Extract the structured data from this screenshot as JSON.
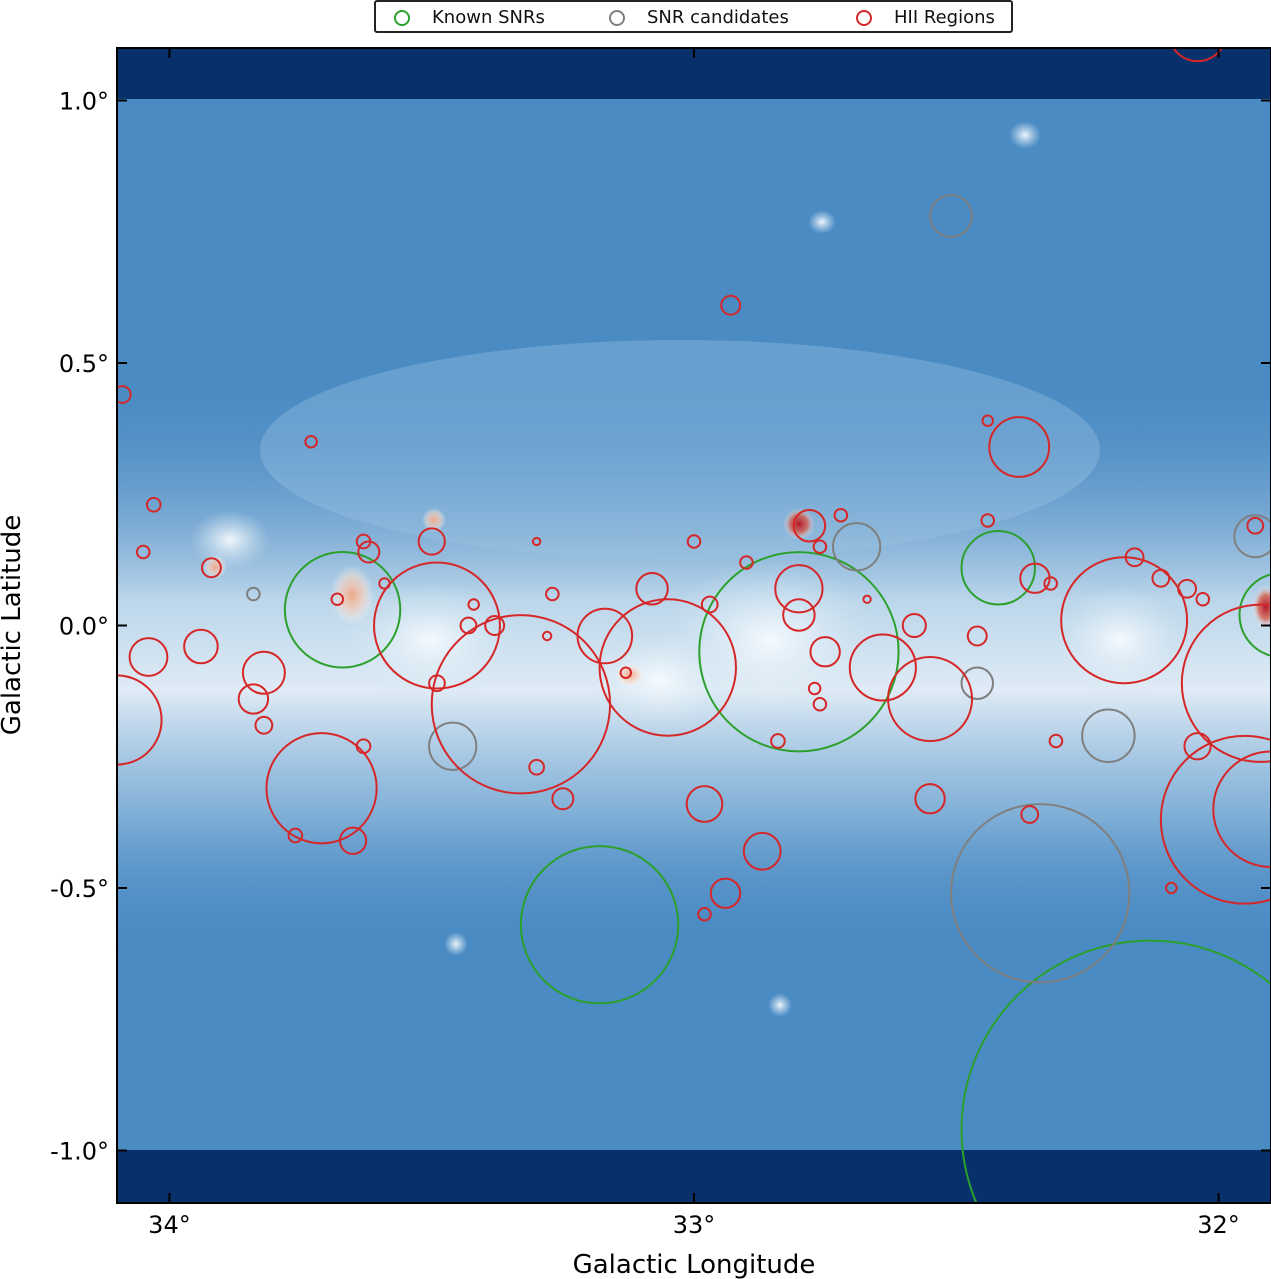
{
  "chart_data": {
    "type": "scatter",
    "xlabel": "Galactic Longitude",
    "ylabel": "Galactic Latitude",
    "xlim": [
      34.1,
      31.9
    ],
    "ylim": [
      -1.1,
      1.1
    ],
    "x_ticks": [
      {
        "value": 34,
        "label": "34°"
      },
      {
        "value": 33,
        "label": "33°"
      },
      {
        "value": 32,
        "label": "32°"
      }
    ],
    "y_ticks": [
      {
        "value": 1.0,
        "label": "1.0°"
      },
      {
        "value": 0.5,
        "label": "0.5°"
      },
      {
        "value": 0.0,
        "label": "0.0°"
      },
      {
        "value": -0.5,
        "label": "-0.5°"
      },
      {
        "value": -1.0,
        "label": "-1.0°"
      }
    ],
    "legend_position": "top-center",
    "legend": [
      {
        "name": "Known SNRs",
        "color": "#2ca02c"
      },
      {
        "name": "SNR candidates",
        "color": "#7f7f7f"
      },
      {
        "name": "HII Regions",
        "color": "#d62728"
      }
    ],
    "series": [
      {
        "name": "Known SNRs",
        "color": "#2ca02c",
        "circles": [
          {
            "l": 33.67,
            "b": 0.03,
            "r": 0.11
          },
          {
            "l": 32.8,
            "b": -0.05,
            "r": 0.19
          },
          {
            "l": 33.18,
            "b": -0.57,
            "r": 0.15
          },
          {
            "l": 32.42,
            "b": 0.11,
            "r": 0.07
          },
          {
            "l": 31.88,
            "b": 0.02,
            "r": 0.08
          },
          {
            "l": 32.13,
            "b": -0.96,
            "r": 0.36
          }
        ]
      },
      {
        "name": "SNR candidates",
        "color": "#7f7f7f",
        "circles": [
          {
            "l": 32.51,
            "b": 0.78,
            "r": 0.04
          },
          {
            "l": 33.46,
            "b": -0.23,
            "r": 0.045
          },
          {
            "l": 33.84,
            "b": 0.06,
            "r": 0.012
          },
          {
            "l": 32.69,
            "b": 0.15,
            "r": 0.045
          },
          {
            "l": 32.34,
            "b": -0.51,
            "r": 0.17
          },
          {
            "l": 32.21,
            "b": -0.21,
            "r": 0.05
          },
          {
            "l": 32.46,
            "b": -0.11,
            "r": 0.03
          },
          {
            "l": 31.93,
            "b": 0.17,
            "r": 0.04
          }
        ]
      },
      {
        "name": "HII Regions",
        "color": "#d62728",
        "circles": [
          {
            "l": 32.04,
            "b": 1.13,
            "r": 0.055
          },
          {
            "l": 32.93,
            "b": 0.61,
            "r": 0.018
          },
          {
            "l": 34.09,
            "b": 0.44,
            "r": 0.016
          },
          {
            "l": 33.73,
            "b": 0.35,
            "r": 0.011
          },
          {
            "l": 34.03,
            "b": 0.23,
            "r": 0.013
          },
          {
            "l": 33.92,
            "b": 0.11,
            "r": 0.018
          },
          {
            "l": 34.05,
            "b": 0.14,
            "r": 0.012
          },
          {
            "l": 34.1,
            "b": -0.18,
            "r": 0.085
          },
          {
            "l": 34.04,
            "b": -0.06,
            "r": 0.036
          },
          {
            "l": 33.94,
            "b": -0.04,
            "r": 0.032
          },
          {
            "l": 33.82,
            "b": -0.09,
            "r": 0.04
          },
          {
            "l": 33.84,
            "b": -0.14,
            "r": 0.028
          },
          {
            "l": 33.82,
            "b": -0.19,
            "r": 0.016
          },
          {
            "l": 33.63,
            "b": 0.16,
            "r": 0.013
          },
          {
            "l": 33.62,
            "b": 0.14,
            "r": 0.02
          },
          {
            "l": 33.59,
            "b": 0.08,
            "r": 0.01
          },
          {
            "l": 33.68,
            "b": 0.05,
            "r": 0.011
          },
          {
            "l": 33.49,
            "b": 0.0,
            "r": 0.12
          },
          {
            "l": 33.5,
            "b": 0.16,
            "r": 0.025
          },
          {
            "l": 33.49,
            "b": -0.11,
            "r": 0.015
          },
          {
            "l": 33.33,
            "b": -0.15,
            "r": 0.17
          },
          {
            "l": 33.43,
            "b": 0.0,
            "r": 0.015
          },
          {
            "l": 33.42,
            "b": 0.04,
            "r": 0.01
          },
          {
            "l": 33.38,
            "b": 0.0,
            "r": 0.018
          },
          {
            "l": 33.71,
            "b": -0.31,
            "r": 0.105
          },
          {
            "l": 33.65,
            "b": -0.41,
            "r": 0.025
          },
          {
            "l": 33.76,
            "b": -0.4,
            "r": 0.013
          },
          {
            "l": 33.63,
            "b": -0.23,
            "r": 0.013
          },
          {
            "l": 33.3,
            "b": -0.27,
            "r": 0.014
          },
          {
            "l": 33.25,
            "b": -0.33,
            "r": 0.02
          },
          {
            "l": 33.17,
            "b": -0.02,
            "r": 0.052
          },
          {
            "l": 33.08,
            "b": 0.07,
            "r": 0.03
          },
          {
            "l": 33.05,
            "b": -0.08,
            "r": 0.13
          },
          {
            "l": 33.13,
            "b": -0.09,
            "r": 0.01
          },
          {
            "l": 32.98,
            "b": -0.34,
            "r": 0.034
          },
          {
            "l": 32.94,
            "b": -0.51,
            "r": 0.028
          },
          {
            "l": 32.87,
            "b": -0.43,
            "r": 0.035
          },
          {
            "l": 32.98,
            "b": -0.55,
            "r": 0.012
          },
          {
            "l": 32.78,
            "b": 0.19,
            "r": 0.03
          },
          {
            "l": 32.8,
            "b": 0.07,
            "r": 0.045
          },
          {
            "l": 32.8,
            "b": 0.02,
            "r": 0.03
          },
          {
            "l": 32.75,
            "b": -0.05,
            "r": 0.028
          },
          {
            "l": 32.76,
            "b": 0.15,
            "r": 0.012
          },
          {
            "l": 32.72,
            "b": 0.21,
            "r": 0.012
          },
          {
            "l": 32.64,
            "b": -0.08,
            "r": 0.063
          },
          {
            "l": 32.67,
            "b": 0.05,
            "r": 0.007
          },
          {
            "l": 32.55,
            "b": -0.14,
            "r": 0.08
          },
          {
            "l": 32.58,
            "b": 0.0,
            "r": 0.022
          },
          {
            "l": 32.55,
            "b": -0.33,
            "r": 0.028
          },
          {
            "l": 32.44,
            "b": 0.39,
            "r": 0.01
          },
          {
            "l": 32.38,
            "b": 0.34,
            "r": 0.057
          },
          {
            "l": 32.44,
            "b": 0.2,
            "r": 0.012
          },
          {
            "l": 32.35,
            "b": 0.09,
            "r": 0.028
          },
          {
            "l": 32.32,
            "b": 0.08,
            "r": 0.012
          },
          {
            "l": 32.46,
            "b": -0.02,
            "r": 0.018
          },
          {
            "l": 32.36,
            "b": -0.36,
            "r": 0.016
          },
          {
            "l": 32.31,
            "b": -0.22,
            "r": 0.012
          },
          {
            "l": 32.18,
            "b": 0.01,
            "r": 0.12
          },
          {
            "l": 32.16,
            "b": 0.13,
            "r": 0.017
          },
          {
            "l": 32.11,
            "b": 0.09,
            "r": 0.016
          },
          {
            "l": 32.06,
            "b": 0.07,
            "r": 0.017
          },
          {
            "l": 32.03,
            "b": 0.05,
            "r": 0.012
          },
          {
            "l": 32.04,
            "b": -0.23,
            "r": 0.025
          },
          {
            "l": 31.95,
            "b": -0.37,
            "r": 0.16
          },
          {
            "l": 31.9,
            "b": -0.35,
            "r": 0.11
          },
          {
            "l": 31.92,
            "b": -0.11,
            "r": 0.15
          },
          {
            "l": 32.09,
            "b": -0.5,
            "r": 0.01
          },
          {
            "l": 31.93,
            "b": 0.19,
            "r": 0.015
          },
          {
            "l": 32.97,
            "b": 0.04,
            "r": 0.015
          },
          {
            "l": 32.9,
            "b": 0.12,
            "r": 0.012
          },
          {
            "l": 33.0,
            "b": 0.16,
            "r": 0.012
          },
          {
            "l": 33.3,
            "b": 0.16,
            "r": 0.007
          },
          {
            "l": 33.27,
            "b": 0.06,
            "r": 0.012
          },
          {
            "l": 33.28,
            "b": -0.02,
            "r": 0.008
          },
          {
            "l": 32.84,
            "b": -0.22,
            "r": 0.013
          },
          {
            "l": 32.77,
            "b": -0.12,
            "r": 0.011
          },
          {
            "l": 32.76,
            "b": -0.15,
            "r": 0.012
          }
        ]
      }
    ]
  }
}
